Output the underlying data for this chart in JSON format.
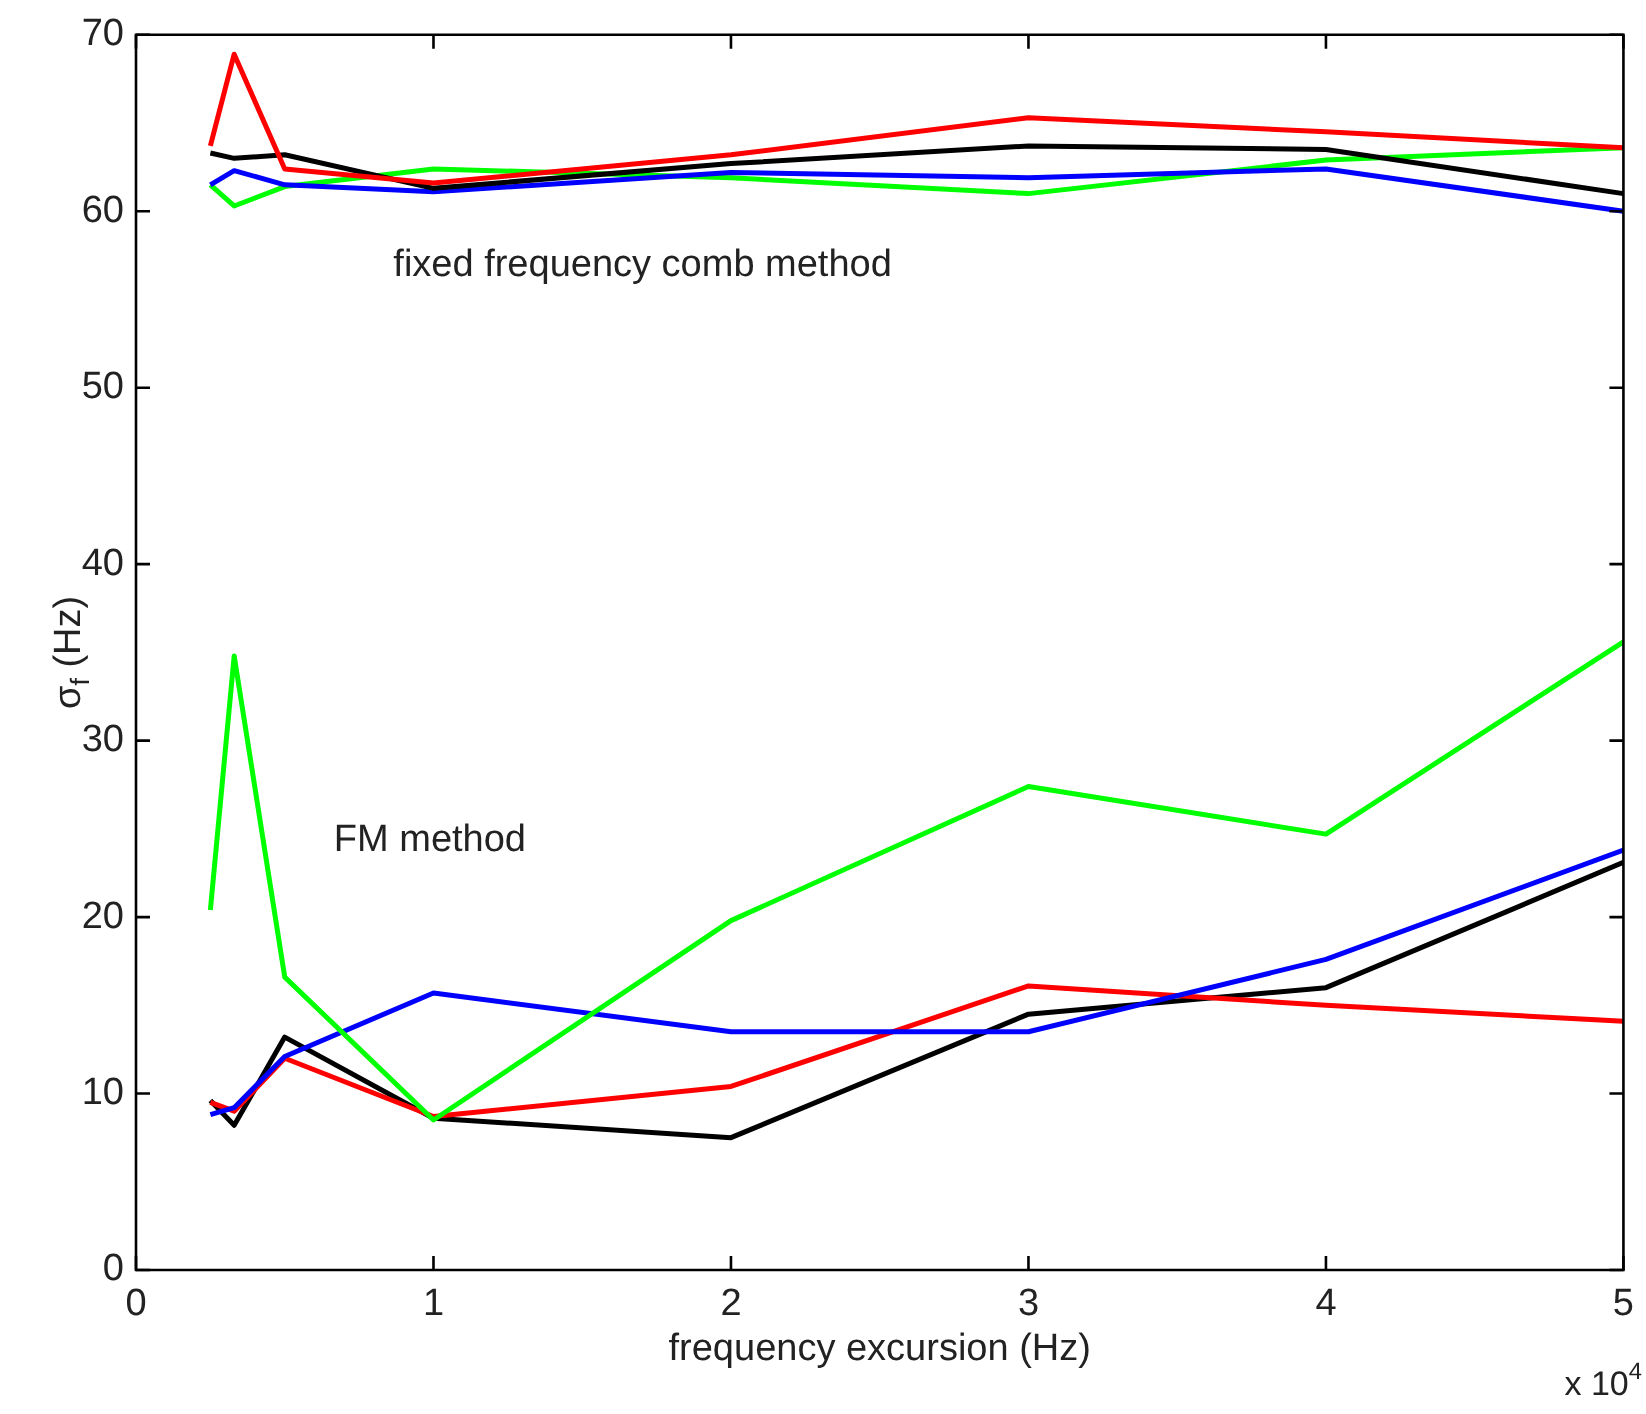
{
  "chart_data": {
    "type": "line",
    "xlabel": "frequency excursion (Hz)",
    "ylabel": "σ$_{f}$ (Hz)",
    "xlim": [
      0,
      5
    ],
    "xticks": [
      0,
      1,
      2,
      3,
      4,
      5
    ],
    "ylim": [
      0,
      70
    ],
    "yticks": [
      0,
      10,
      20,
      30,
      40,
      50,
      60,
      70
    ],
    "x": [
      0.25,
      0.33,
      0.5,
      1,
      2,
      3,
      4,
      5
    ],
    "series": [
      {
        "color": "#ff0000",
        "values": [
          63.7,
          68.9,
          62.4,
          61.6,
          63.2,
          65.3,
          64.5,
          63.6
        ]
      },
      {
        "color": "#000000",
        "values": [
          63.3,
          63.0,
          63.2,
          61.3,
          62.7,
          63.7,
          63.5,
          61.0
        ]
      },
      {
        "color": "#0000ff",
        "values": [
          61.5,
          62.3,
          61.5,
          61.1,
          62.2,
          61.9,
          62.4,
          60.0
        ]
      },
      {
        "color": "#00ff00",
        "values": [
          61.5,
          60.3,
          61.4,
          62.4,
          61.9,
          61.0,
          62.9,
          63.6
        ]
      },
      {
        "color": "#00ff00",
        "values": [
          20.4,
          34.8,
          16.6,
          8.5,
          19.8,
          27.4,
          24.7,
          35.6
        ]
      },
      {
        "color": "#0000ff",
        "values": [
          8.8,
          9.2,
          12.1,
          15.7,
          13.5,
          13.5,
          17.6,
          23.8
        ]
      },
      {
        "color": "#ff0000",
        "values": [
          9.5,
          9.0,
          12.0,
          8.7,
          10.4,
          16.1,
          15.0,
          14.1
        ]
      },
      {
        "color": "#000000",
        "values": [
          9.6,
          8.2,
          13.2,
          8.6,
          7.5,
          14.5,
          16.0,
          23.1
        ]
      }
    ],
    "annotations": [
      "fixed frequency comb method",
      "FM method",
      "x 10$^{4}$"
    ],
    "grid": false,
    "legend": false,
    "marker": "none",
    "line_style": "solid"
  }
}
